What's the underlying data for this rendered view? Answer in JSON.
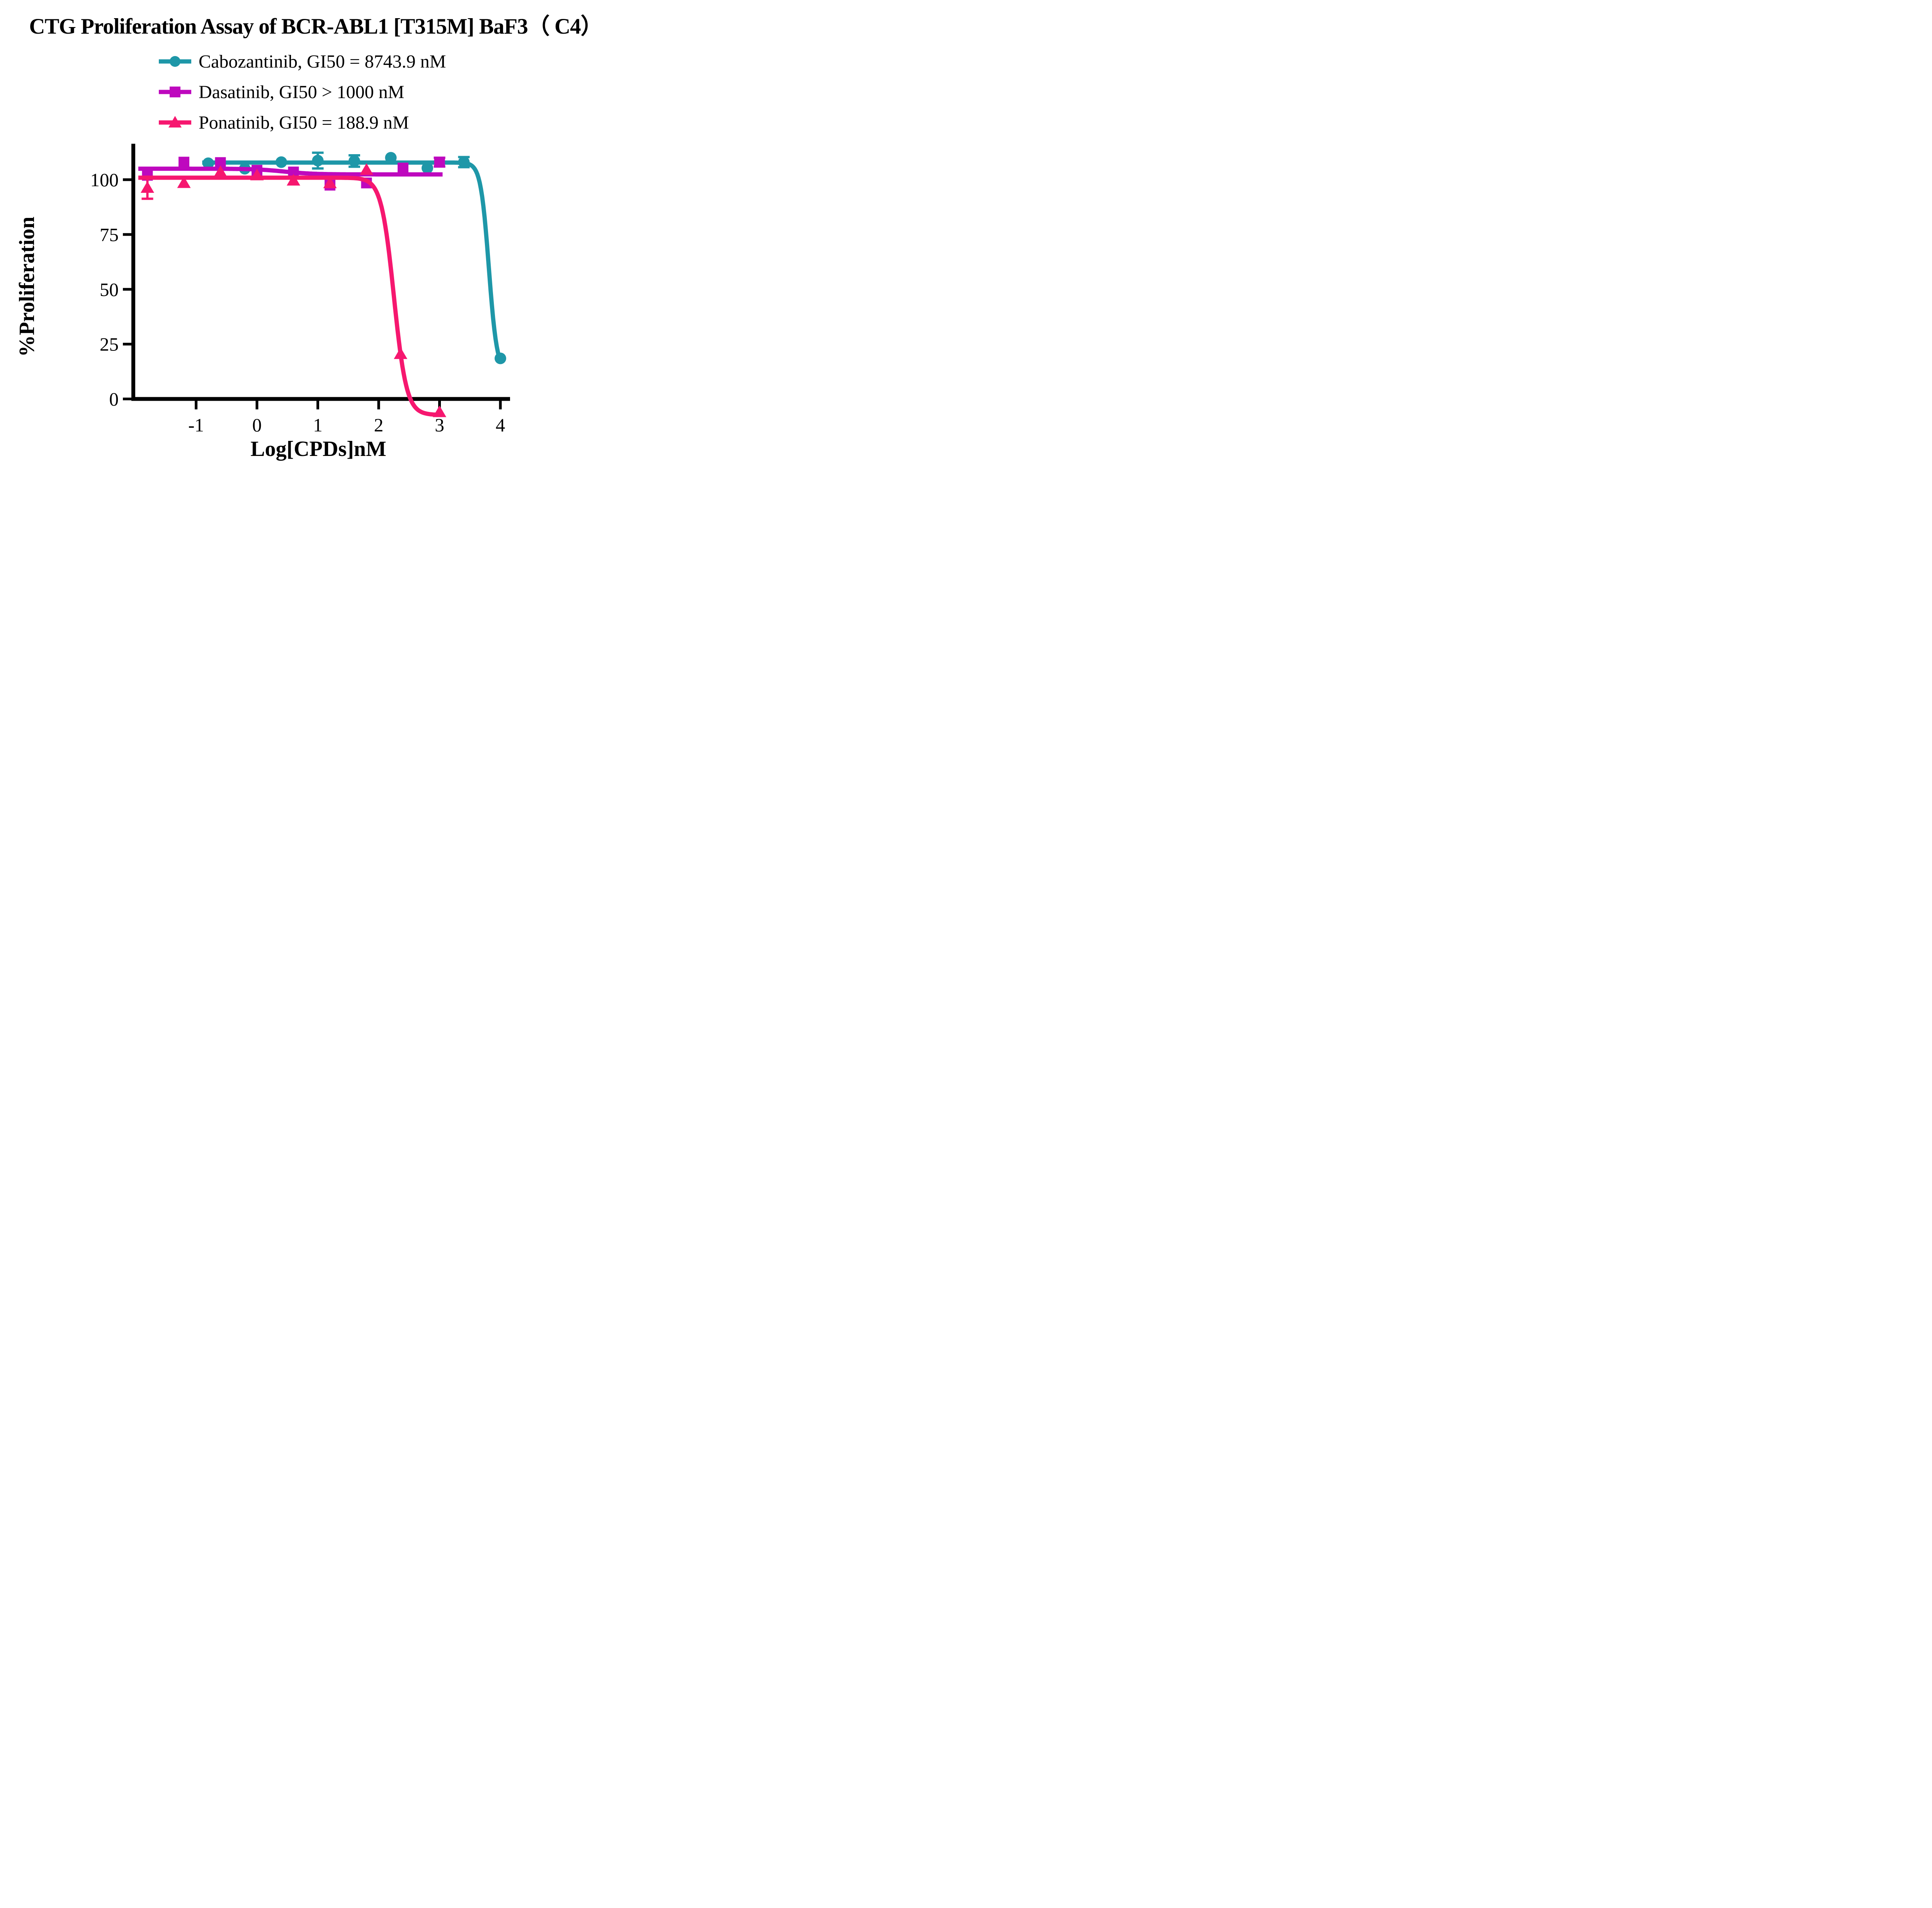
{
  "title": "CTG Proliferation Assay of BCR-ABL1 [T315M] BaF3（ C4）",
  "legend": {
    "items": [
      {
        "label": "Cabozantinib, GI50 = 8743.9 nM",
        "marker": "circle",
        "color": "#1E97A8"
      },
      {
        "label": "Dasatinib, GI50 > 1000 nM",
        "marker": "square",
        "color": "#BE08BE"
      },
      {
        "label": "Ponatinib, GI50 = 188.9 nM",
        "marker": "triangle",
        "color": "#F6176F"
      }
    ]
  },
  "chart_data": {
    "type": "line",
    "title": "CTG Proliferation Assay of BCR-ABL1 [T315M] BaF3（ C4）",
    "xlabel": "Log[CPDs]nM",
    "ylabel": "%Proliferation",
    "xlim": [
      -2.0,
      4.15
    ],
    "ylim": [
      -12,
      117
    ],
    "grid": false,
    "legend_position": "top-center",
    "x_ticks": [
      -1,
      0,
      1,
      2,
      3,
      4
    ],
    "y_ticks": [
      0,
      25,
      50,
      75,
      100
    ],
    "series": [
      {
        "name": "Cabozantinib",
        "gi50": "GI50 = 8743.9 nM",
        "color": "#1E97A8",
        "marker": "circle",
        "x": [
          -0.8,
          -0.2,
          0.4,
          1.0,
          1.6,
          2.2,
          2.8,
          3.4,
          4.0
        ],
        "y": [
          107.5,
          105.0,
          108.0,
          108.7,
          108.5,
          110.0,
          105.3,
          108.0,
          18.5
        ],
        "yerr": [
          0,
          0,
          0,
          3.6,
          2.6,
          0,
          0,
          2.3,
          0
        ],
        "curve": {
          "top": 107.8,
          "bottom": 12.0,
          "loggi50": 3.81,
          "hill": 6.5,
          "from": -0.9,
          "to": 4.0
        }
      },
      {
        "name": "Dasatinib",
        "gi50": "GI50 > 1000 nM",
        "color": "#BE08BE",
        "marker": "square",
        "x": [
          -1.8,
          -1.2,
          -0.6,
          0.0,
          0.6,
          1.2,
          1.8,
          2.4,
          3.0
        ],
        "y": [
          102.0,
          108.0,
          107.8,
          104.3,
          103.5,
          97.5,
          98.5,
          105.3,
          108.0
        ],
        "yerr": [
          0,
          0,
          0,
          0,
          0,
          0,
          0,
          0,
          2.0
        ],
        "curve": {
          "top": 105.0,
          "bottom": 102.4,
          "loggi50": 0.45,
          "hill": 1.8,
          "from": -1.95,
          "to": 3.05
        }
      },
      {
        "name": "Ponatinib",
        "gi50": "GI50 = 188.9 nM",
        "color": "#F6176F",
        "marker": "triangle",
        "x": [
          -1.8,
          -1.2,
          -0.6,
          0.0,
          0.6,
          1.2,
          1.8,
          2.36,
          3.0
        ],
        "y": [
          96.3,
          98.5,
          103.5,
          102.0,
          99.6,
          98.4,
          104.5,
          20.5,
          -6.0
        ],
        "yerr": [
          5.0,
          0,
          0,
          0,
          0,
          0,
          0,
          0,
          0
        ],
        "curve": {
          "top": 100.9,
          "bottom": -7.3,
          "loggi50": 2.25,
          "hill": 4.2,
          "from": -1.95,
          "to": 2.99
        }
      }
    ]
  }
}
